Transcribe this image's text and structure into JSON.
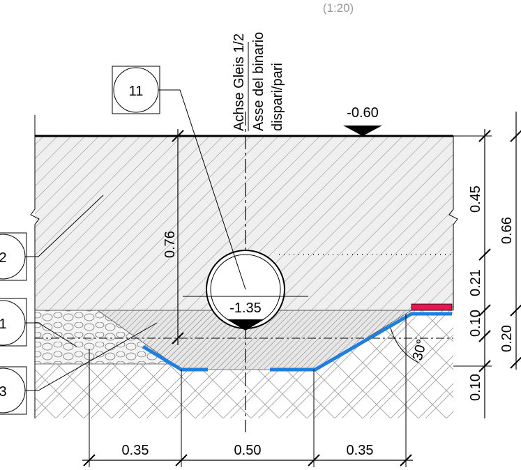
{
  "scale": "(1:20)",
  "axis_label": [
    "Achse Gleis 1/2",
    "Asse del binario",
    "dispari/pari"
  ],
  "levels": [
    "-0.60",
    "-1.35"
  ],
  "callouts": [
    "11",
    "2",
    "1",
    "3"
  ],
  "dimensions": {
    "pipe_depth": "0.76",
    "right_inner": [
      "0.45",
      "0.21",
      "0.10",
      "0.10"
    ],
    "right_outer": [
      "0.66",
      "0.20"
    ],
    "angle": "30°",
    "bottom": [
      "0.35",
      "0.50",
      "0.35"
    ]
  }
}
